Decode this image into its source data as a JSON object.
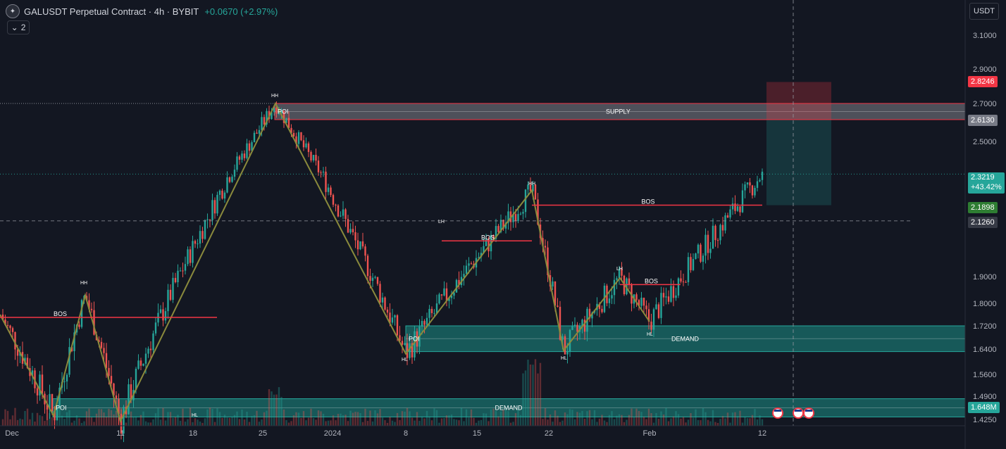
{
  "header": {
    "logo_glyph": "✦",
    "symbol_title": "GALUSDT Perpetual Contract · 4h · BYBIT",
    "change_text": "+0.0670 (+2.97%)",
    "indicator_count": "2",
    "currency_button": "USDT"
  },
  "colors": {
    "background": "#131722",
    "up": "#26a69a",
    "down": "#ef5350",
    "zigzag": "#8a8a3c",
    "bos_line": "#f23645",
    "demand_fill": "#1b8f86",
    "supply_fill": "#8f8f9a"
  },
  "chart_data": {
    "type": "candlestick",
    "symbol": "GALUSDT",
    "exchange": "BYBIT",
    "timeframe": "4h",
    "price_axis_ticks": [
      "3.1000",
      "2.9000",
      "2.7000",
      "2.5000",
      "1.9000",
      "1.8000",
      "1.7200",
      "1.6400",
      "1.5600",
      "1.4900",
      "1.4250"
    ],
    "time_axis_ticks": [
      "Dec",
      "11",
      "18",
      "25",
      "2024",
      "8",
      "15",
      "22",
      "Feb",
      "12"
    ],
    "price_tags": [
      {
        "text": "2.8246",
        "color": "#f23645"
      },
      {
        "text": "2.6130",
        "color": "#787b86"
      },
      {
        "text": "2.3219",
        "sub": "+43.42%",
        "color": "#26a69a"
      },
      {
        "text": "2.1898",
        "color": "#2e7d32"
      },
      {
        "text": "2.1260",
        "color": "#363a45"
      },
      {
        "text": "1.648M",
        "color": "#26a69a"
      }
    ],
    "zones": [
      {
        "name": "supply",
        "label": "SUPPLY",
        "poi": "POI",
        "top": 2.7,
        "bottom": 2.615
      },
      {
        "name": "demand-mid",
        "label": "DEMAND",
        "poi": "POI",
        "top": 1.72,
        "bottom": 1.632
      },
      {
        "name": "demand-low",
        "label": "DEMAND",
        "poi": "POI",
        "top": 1.483,
        "bottom": 1.432
      }
    ],
    "position": {
      "target": 2.8246,
      "entry": 2.613,
      "stop": 2.1898
    },
    "bos_labels": [
      "BOS",
      "BOS",
      "BOS",
      "BOS"
    ],
    "swing_labels": [
      "HH",
      "HL",
      "HH",
      "HL",
      "LH",
      "HH",
      "HL",
      "LH",
      "HL"
    ],
    "zigzag": [
      {
        "date": "Nov 29",
        "price": 1.76
      },
      {
        "date": "Dec 5",
        "price": 1.435
      },
      {
        "date": "Dec 8",
        "price": 1.83
      },
      {
        "date": "Dec 11",
        "price": 1.42
      },
      {
        "date": "Dec 26",
        "price": 2.7
      },
      {
        "date": "Jan 8",
        "price": 1.625
      },
      {
        "date": "Jan 20",
        "price": 2.25
      },
      {
        "date": "Jan 23",
        "price": 1.635
      },
      {
        "date": "Jan 30",
        "price": 1.895
      },
      {
        "date": "Feb 1",
        "price": 1.735
      }
    ],
    "crosshair_price": 2.126,
    "last_price": 2.3219
  }
}
